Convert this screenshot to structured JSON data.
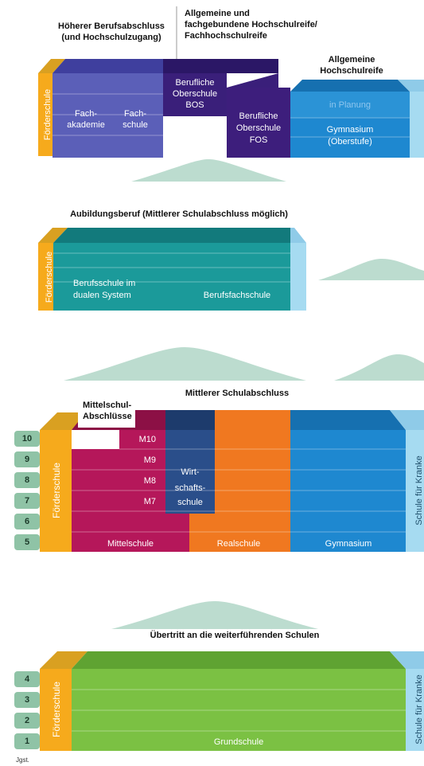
{
  "top": {
    "headers": [
      {
        "lines": [
          "Höherer Berufsabschluss",
          "(und Hochschulzugang)"
        ]
      },
      {
        "lines": [
          "Allgemeine und",
          "fachgebundene Hochschulreife/",
          "Fachhochschulreife"
        ]
      },
      {
        "lines": [
          "Allgemeine",
          "Hochschulreife"
        ]
      }
    ],
    "foerderschule": "Förderschule",
    "fachakademie": [
      "Fach-",
      "akademie"
    ],
    "fachschule": [
      "Fach-",
      "schule"
    ],
    "bos": [
      "Berufliche",
      "Oberschule",
      "BOS"
    ],
    "fos": [
      "Berufliche",
      "Oberschule",
      "FOS"
    ],
    "in_planung": "in Planung",
    "gymnasium": [
      "Gymnasium",
      "(Oberstufe)"
    ]
  },
  "ausbildung": {
    "title": "Aubildungsberuf (Mittlerer Schulabschluss möglich)",
    "foerderschule": "Förderschule",
    "berufsschule": [
      "Berufsschule im",
      "dualen System"
    ],
    "berufsfachschule": "Berufsfachschule"
  },
  "sekundar": {
    "mittelschul_abschluesse": [
      "Mittelschul-",
      "Abschlüsse"
    ],
    "title": "Mittlerer Schulabschluss",
    "grades": [
      "10",
      "9",
      "8",
      "7",
      "6",
      "5"
    ],
    "m_classes": [
      "M10",
      "M9",
      "M8",
      "M7"
    ],
    "foerderschule": "Förderschule",
    "wirtschaftsschule": [
      "Wirt-",
      "schafts-",
      "schule"
    ],
    "mittelschule": "Mittelschule",
    "realschule": "Realschule",
    "gymnasium": "Gymnasium",
    "schule_fuer_kranke": "Schule für Kranke"
  },
  "grundstufe": {
    "title": "Übertritt an die weiterführenden Schulen",
    "grades": [
      "4",
      "3",
      "2",
      "1"
    ],
    "foerderschule": "Förderschule",
    "grundschule": "Grundschule",
    "schule_fuer_kranke": "Schule für Kranke"
  },
  "footer": {
    "jgst": "Jgst."
  }
}
